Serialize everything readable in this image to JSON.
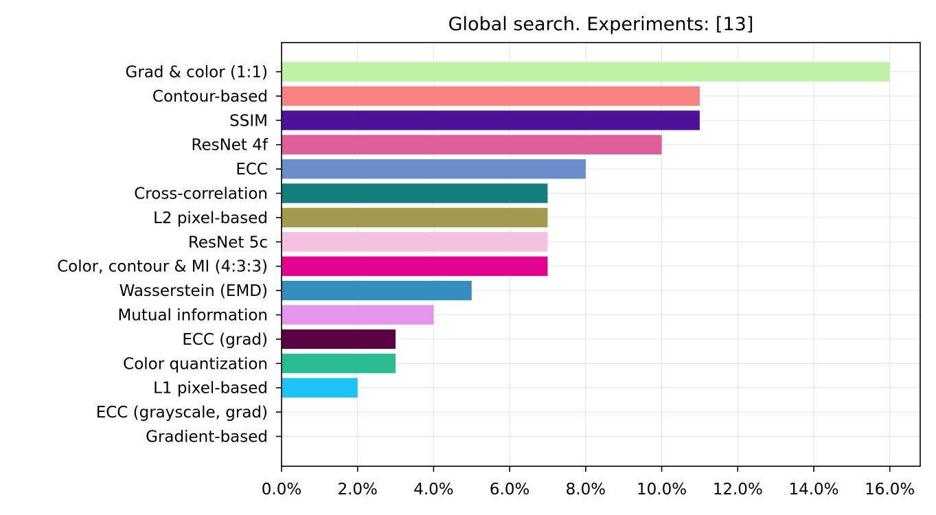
{
  "chart_data": {
    "type": "bar",
    "orientation": "horizontal",
    "title": "Global search. Experiments: [13]",
    "xlabel": "",
    "ylabel": "",
    "xlim": [
      0,
      16.8
    ],
    "x_ticks": [
      0,
      2,
      4,
      6,
      8,
      10,
      12,
      14,
      16
    ],
    "x_tick_labels": [
      "0.0%",
      "2.0%",
      "4.0%",
      "6.0%",
      "8.0%",
      "10.0%",
      "12.0%",
      "14.0%",
      "16.0%"
    ],
    "grid": true,
    "categories": [
      "Grad & color (1:1)",
      "Contour-based",
      "SSIM",
      "ResNet 4f",
      "ECC",
      "Cross-correlation",
      "L2 pixel-based",
      "ResNet 5c",
      "Color, contour & MI (4:3:3)",
      "Wasserstein (EMD)",
      "Mutual information",
      "ECC (grad)",
      "Color quantization",
      "L1 pixel-based",
      "ECC (grayscale, grad)",
      "Gradient-based"
    ],
    "values": [
      16,
      11,
      11,
      10,
      8,
      7,
      7,
      7,
      7,
      5,
      4,
      3,
      3,
      2,
      0,
      0
    ],
    "colors": [
      "#bff2a6",
      "#f7827f",
      "#4f119a",
      "#df5d99",
      "#6a8cca",
      "#137f7a",
      "#a29a4c",
      "#f6c1e1",
      "#e1028e",
      "#338dbf",
      "#e596ea",
      "#5a0242",
      "#2abb93",
      "#1dc2f3",
      "#cccccc",
      "#cccccc"
    ]
  }
}
